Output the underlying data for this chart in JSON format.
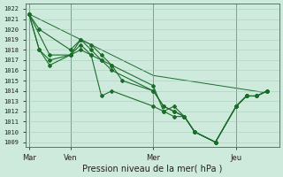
{
  "title": "Pression niveau de la mer( hPa )",
  "ylabel_values": [
    1009,
    1010,
    1011,
    1012,
    1013,
    1014,
    1015,
    1016,
    1017,
    1018,
    1019,
    1020,
    1021,
    1022
  ],
  "ylim": [
    1008.5,
    1022.5
  ],
  "background_color": "#ceeadc",
  "grid_color": "#aaccbb",
  "line_color": "#1a6e2a",
  "x_ticks_labels": [
    "Mar",
    "Ven",
    "Mer",
    "Jeu"
  ],
  "x_ticks_pos": [
    0,
    48,
    144,
    240
  ],
  "xlim": [
    -4,
    290
  ],
  "series": [
    {
      "x": [
        0,
        12,
        48,
        60,
        72,
        84,
        96,
        108,
        144,
        156,
        168,
        180,
        192,
        216,
        240,
        252,
        264,
        276
      ],
      "y": [
        1021.5,
        1020.0,
        1018.0,
        1019.0,
        1018.5,
        1017.5,
        1016.5,
        1015.0,
        1014.0,
        1012.5,
        1012.0,
        1011.5,
        1010.0,
        1009.0,
        1012.5,
        1013.5,
        1013.5,
        1014.0
      ]
    },
    {
      "x": [
        0,
        12,
        24,
        48,
        60,
        72,
        84,
        96,
        144,
        156,
        168,
        180,
        192,
        216,
        240,
        252,
        264,
        276
      ],
      "y": [
        1021.5,
        1018.0,
        1017.0,
        1017.5,
        1019.0,
        1018.0,
        1017.0,
        1016.5,
        1014.5,
        1012.0,
        1012.5,
        1011.5,
        1010.0,
        1009.0,
        1012.5,
        1013.5,
        1013.5,
        1014.0
      ]
    },
    {
      "x": [
        0,
        12,
        24,
        48,
        60,
        72,
        84,
        96,
        144,
        156,
        168,
        180,
        192,
        216,
        240,
        252,
        264,
        276
      ],
      "y": [
        1021.5,
        1018.0,
        1016.5,
        1017.5,
        1018.0,
        1017.5,
        1013.5,
        1014.0,
        1012.5,
        1012.0,
        1011.5,
        1011.5,
        1010.0,
        1009.0,
        1012.5,
        1013.5,
        1013.5,
        1014.0
      ]
    },
    {
      "x": [
        0,
        24,
        48,
        60,
        72,
        84,
        96,
        144,
        156,
        168,
        180,
        192,
        216,
        240,
        252,
        264,
        276
      ],
      "y": [
        1021.5,
        1017.5,
        1017.5,
        1018.5,
        1017.5,
        1017.0,
        1016.0,
        1014.0,
        1012.5,
        1012.0,
        1011.5,
        1010.0,
        1009.0,
        1012.5,
        1013.5,
        1013.5,
        1014.0
      ]
    },
    {
      "x": [
        0,
        144,
        276
      ],
      "y": [
        1021.5,
        1015.5,
        1013.8
      ]
    }
  ]
}
